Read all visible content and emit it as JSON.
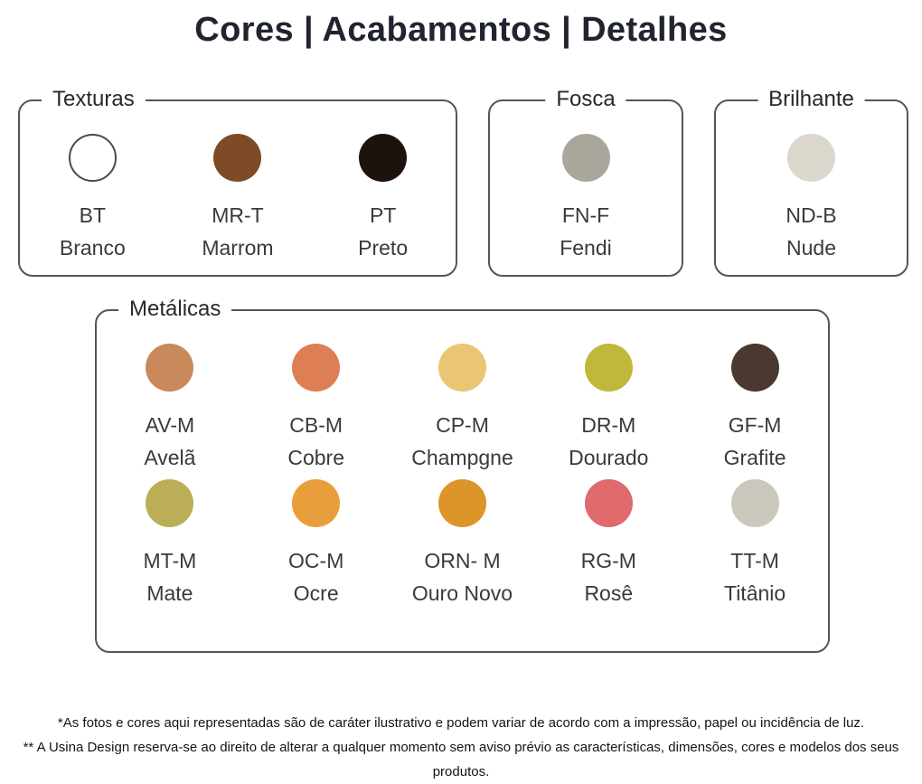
{
  "title": "Cores | Acabamentos | Detalhes",
  "colors": {
    "box_border": "#53555a",
    "swatch_outline": "#4a4a4a",
    "label_text": "#3a3a3a",
    "title_text": "#20242e"
  },
  "sections": {
    "texturas": {
      "label": "Texturas",
      "swatches": [
        {
          "code": "BT",
          "name": "Branco",
          "color": "#ffffff",
          "outline": true
        },
        {
          "code": "MR-T",
          "name": "Marrom",
          "color": "#7d4b25"
        },
        {
          "code": "PT",
          "name": "Preto",
          "color": "#1d130e"
        }
      ]
    },
    "fosca": {
      "label": "Fosca",
      "swatches": [
        {
          "code": "FN-F",
          "name": "Fendi",
          "color": "#a9a79b"
        }
      ]
    },
    "brilhante": {
      "label": "Brilhante",
      "swatches": [
        {
          "code": "ND-B",
          "name": "Nude",
          "color": "#dcd7cc"
        }
      ]
    },
    "metalicas": {
      "label": "Metálicas",
      "swatches": [
        {
          "code": "AV-M",
          "name": "Avelã",
          "color": "#c9895a"
        },
        {
          "code": "CB-M",
          "name": "Cobre",
          "color": "#dd7e55"
        },
        {
          "code": "CP-M",
          "name": "Champgne",
          "color": "#eac573"
        },
        {
          "code": "DR-M",
          "name": "Dourado",
          "color": "#c1b73a"
        },
        {
          "code": "GF-M",
          "name": "Grafite",
          "color": "#4b382f"
        },
        {
          "code": "MT-M",
          "name": "Mate",
          "color": "#bcae57"
        },
        {
          "code": "OC-M",
          "name": "Ocre",
          "color": "#e99e3c"
        },
        {
          "code": "ORN- M",
          "name": "Ouro Novo",
          "color": "#dc9529"
        },
        {
          "code": "RG-M",
          "name": "Rosê",
          "color": "#e06a6c"
        },
        {
          "code": "TT-M",
          "name": "Titânio",
          "color": "#cac8bd"
        }
      ]
    }
  },
  "footnotes": [
    "*As fotos e cores aqui representadas são de caráter ilustrativo e podem variar de acordo com a impressão, papel ou incidência de luz.",
    "** A Usina Design reserva-se ao direito de alterar a qualquer momento sem  aviso prévio  as características, dimensões, cores e modelos dos seus produtos."
  ]
}
